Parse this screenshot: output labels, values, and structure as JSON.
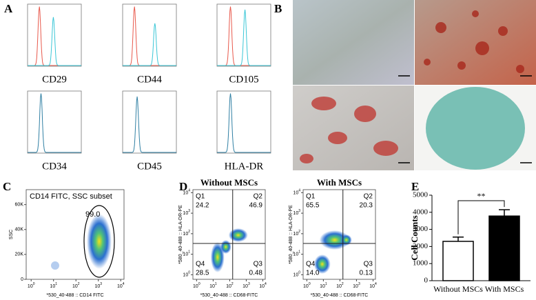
{
  "figure": {
    "panel_labels": [
      "A",
      "B",
      "C",
      "D",
      "E"
    ]
  },
  "histograms": {
    "markers": [
      "CD29",
      "CD44",
      "CD105",
      "CD34",
      "CD45",
      "HLA-DR"
    ]
  },
  "panel_c": {
    "title": "CD14 FITC, SSC subset",
    "gate_value": "99.0",
    "y_label": "SSC",
    "x_label": "*530_40-488 :: CD14 FITC",
    "ylim": [
      0,
      72000
    ],
    "yticks": [
      0,
      {
        "value": 20000,
        "label": "20K"
      },
      {
        "value": 40000,
        "label": "40K"
      },
      {
        "value": 60000,
        "label": "60K"
      }
    ],
    "xlim": [
      0.6,
      14000
    ],
    "xticks": [
      {
        "value": 1,
        "label": "10",
        "exponent": "0"
      },
      {
        "value": 10,
        "label": "10",
        "exponent": "1"
      },
      {
        "value": 100,
        "label": "10",
        "exponent": "2"
      },
      {
        "value": 1000,
        "label": "10",
        "exponent": "3"
      },
      {
        "value": 10000,
        "label": "10",
        "exponent": "4"
      }
    ]
  },
  "panel_d": {
    "x_label": "*530_40-488 :: CD68-FITC",
    "y_label": "*580_40-488 :: HLA-DR-PE",
    "xlim": [
      0.6,
      14000
    ],
    "ylim": [
      0.6,
      14000
    ],
    "xticks": [
      {
        "value": 1,
        "label": "10",
        "exponent": "0"
      },
      {
        "value": 10,
        "label": "10",
        "exponent": "1"
      },
      {
        "value": 100,
        "label": "10",
        "exponent": "2"
      },
      {
        "value": 1000,
        "label": "10",
        "exponent": "3"
      },
      {
        "value": 10000,
        "label": "10",
        "exponent": "4"
      }
    ],
    "yticks": [
      {
        "value": 1,
        "label": "10",
        "exponent": "0"
      },
      {
        "value": 10,
        "label": "10",
        "exponent": "1"
      },
      {
        "value": 100,
        "label": "10",
        "exponent": "2"
      },
      {
        "value": 1000,
        "label": "10",
        "exponent": "3"
      },
      {
        "value": 10000,
        "label": "10",
        "exponent": "4"
      }
    ],
    "plots": [
      {
        "title": "Without MSCs",
        "quadrants": [
          {
            "name": "Q1",
            "value": "24.2"
          },
          {
            "name": "Q2",
            "value": "46.9"
          },
          {
            "name": "Q3",
            "value": "0.48"
          },
          {
            "name": "Q4",
            "value": "28.5"
          }
        ]
      },
      {
        "title": "With MSCs",
        "quadrants": [
          {
            "name": "Q1",
            "value": "65.5"
          },
          {
            "name": "Q2",
            "value": "20.3"
          },
          {
            "name": "Q3",
            "value": "0.13"
          },
          {
            "name": "Q4",
            "value": "14.0"
          }
        ]
      }
    ]
  },
  "chart_data": {
    "type": "bar",
    "y_label": "Cell Counts",
    "categories": [
      "Without MSCs",
      "With MSCs"
    ],
    "values": [
      2300,
      3780
    ],
    "errors": [
      250,
      370
    ],
    "colors": [
      "#ffffff",
      "#000000"
    ],
    "ylim": [
      0,
      5000
    ],
    "yticks": [
      0,
      1000,
      2000,
      3000,
      4000,
      5000
    ],
    "annotation": "**"
  }
}
